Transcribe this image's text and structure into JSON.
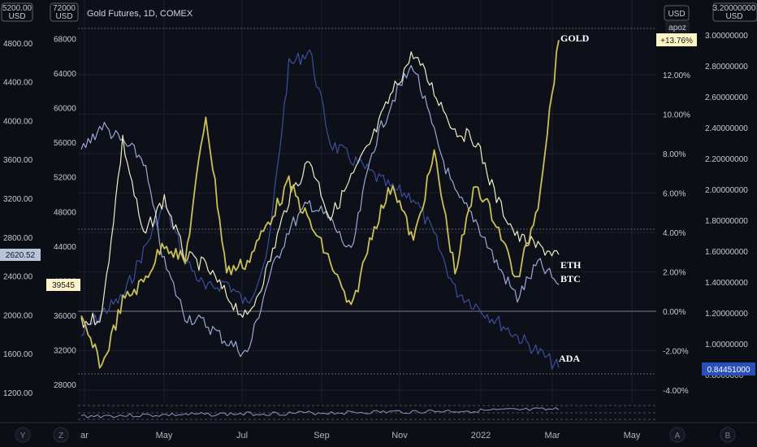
{
  "chart_title": "Gold Futures, 1D, COMEX",
  "currency": "USD",
  "currency_btn": "USD",
  "apoz_label": "apoz",
  "colors": {
    "gold": "#c9c057",
    "eth": "#f0ecc6",
    "btc": "#9aa9d4",
    "ada": "#3a4f9e",
    "background": "#0c0e15",
    "grid": "#1c1f2a"
  },
  "axes": {
    "far_left": {
      "ticks": [
        "5200.00",
        "4800.00",
        "4400.00",
        "4000.00",
        "3600.00",
        "3200.00",
        "2800.00",
        "2400.00",
        "2000.00",
        "1600.00",
        "1200.00"
      ],
      "badge": "2620.52"
    },
    "left": {
      "ticks": [
        "72000",
        "68000",
        "64000",
        "60000",
        "56000",
        "52000",
        "48000",
        "44000",
        "40000",
        "36000",
        "32000",
        "28000"
      ],
      "badge": "39545"
    },
    "right_pct": {
      "ticks": [
        "12.00%",
        "10.00%",
        "8.00%",
        "6.00%",
        "4.00%",
        "2.00%",
        "0.00%",
        "-2.00%",
        "-4.00%"
      ],
      "badge": "+13.76%"
    },
    "far_right": {
      "ticks": [
        "3.20000000",
        "3.00000000",
        "2.80000000",
        "2.60000000",
        "2.40000000",
        "2.20000000",
        "2.00000000",
        "1.80000000",
        "1.60000000",
        "1.40000000",
        "1.20000000",
        "1.00000000"
      ],
      "badge": "0.84451000",
      "partial_bottom": "0.8000000"
    }
  },
  "x_axis": {
    "labels": [
      "ar",
      "May",
      "Jul",
      "Sep",
      "Nov",
      "2022",
      "Mar",
      "May"
    ]
  },
  "bottom_buttons": [
    "Y",
    "Z",
    "A",
    "B"
  ],
  "series_labels": {
    "gold": "GOLD",
    "eth": "ETH",
    "btc": "BTC",
    "ada": "ADA"
  },
  "chart_data": {
    "type": "line",
    "x": [
      "2021-03-15",
      "2021-04-01",
      "2021-04-15",
      "2021-05-01",
      "2021-05-15",
      "2021-06-01",
      "2021-06-15",
      "2021-07-01",
      "2021-07-15",
      "2021-08-01",
      "2021-08-15",
      "2021-09-01",
      "2021-09-15",
      "2021-10-01",
      "2021-10-15",
      "2021-11-01",
      "2021-11-15",
      "2021-12-01",
      "2021-12-15",
      "2022-01-01",
      "2022-01-15",
      "2022-02-01",
      "2022-02-15",
      "2022-03-07"
    ],
    "series": [
      {
        "name": "GOLD",
        "axis": "right_pct",
        "values": [
          -0.5,
          -2.8,
          0.5,
          1.5,
          3.5,
          2.5,
          10.0,
          2.0,
          2.5,
          4.5,
          6.5,
          4.5,
          2.5,
          0.0,
          4.0,
          6.5,
          3.5,
          8.0,
          2.0,
          6.5,
          4.5,
          1.5,
          5.5,
          13.76
        ]
      },
      {
        "name": "ETH",
        "axis": "far_left",
        "values": [
          1900,
          2000,
          3800,
          2800,
          3200,
          2600,
          2500,
          2200,
          1950,
          2500,
          3200,
          3600,
          3000,
          3400,
          3800,
          4300,
          4700,
          4300,
          3900,
          3800,
          3200,
          2800,
          2700,
          2620.52
        ]
      },
      {
        "name": "BTC",
        "axis": "left",
        "values": [
          55000,
          58000,
          56000,
          54000,
          42000,
          36000,
          35000,
          33000,
          31500,
          40000,
          46000,
          49000,
          47000,
          43000,
          55000,
          61000,
          65000,
          57000,
          50000,
          47000,
          42000,
          38000,
          42000,
          39545
        ]
      },
      {
        "name": "ADA",
        "axis": "far_right",
        "values": [
          1.05,
          1.2,
          1.3,
          1.6,
          1.9,
          1.55,
          1.35,
          1.4,
          1.25,
          1.6,
          2.8,
          2.9,
          2.3,
          2.2,
          2.1,
          2.0,
          1.95,
          1.7,
          1.35,
          1.25,
          1.15,
          1.05,
          0.95,
          0.84451
        ]
      }
    ]
  }
}
